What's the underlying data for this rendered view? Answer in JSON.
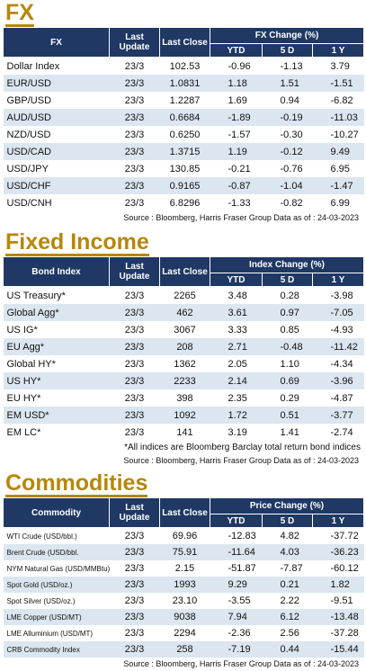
{
  "fx": {
    "title": "FX",
    "headers": {
      "name": "FX",
      "last_update": "Last Update",
      "last_close": "Last Close",
      "group": "FX Change (%)",
      "ytd": "YTD",
      "d5": "5 D",
      "y1": "1 Y"
    },
    "rows": [
      {
        "name": "Dollar Index",
        "update": "23/3",
        "close": "102.53",
        "ytd": "-0.96",
        "d5": "-1.13",
        "y1": "3.79"
      },
      {
        "name": "EUR/USD",
        "update": "23/3",
        "close": "1.0831",
        "ytd": "1.18",
        "d5": "1.51",
        "y1": "-1.51"
      },
      {
        "name": "GBP/USD",
        "update": "23/3",
        "close": "1.2287",
        "ytd": "1.69",
        "d5": "0.94",
        "y1": "-6.82"
      },
      {
        "name": "AUD/USD",
        "update": "23/3",
        "close": "0.6684",
        "ytd": "-1.89",
        "d5": "-0.19",
        "y1": "-11.03"
      },
      {
        "name": "NZD/USD",
        "update": "23/3",
        "close": "0.6250",
        "ytd": "-1.57",
        "d5": "-0.30",
        "y1": "-10.27"
      },
      {
        "name": "USD/CAD",
        "update": "23/3",
        "close": "1.3715",
        "ytd": "1.19",
        "d5": "-0.12",
        "y1": "9.49"
      },
      {
        "name": "USD/JPY",
        "update": "23/3",
        "close": "130.85",
        "ytd": "-0.21",
        "d5": "-0.76",
        "y1": "6.95"
      },
      {
        "name": "USD/CHF",
        "update": "23/3",
        "close": "0.9165",
        "ytd": "-0.87",
        "d5": "-1.04",
        "y1": "-1.47"
      },
      {
        "name": "USD/CNH",
        "update": "23/3",
        "close": "6.8296",
        "ytd": "-1.33",
        "d5": "-0.82",
        "y1": "6.99"
      }
    ],
    "source": "Source : Bloomberg, Harris Fraser Group Data as of : 24-03-2023"
  },
  "fixed_income": {
    "title": "Fixed Income",
    "headers": {
      "name": "Bond Index",
      "last_update": "Last Update",
      "last_close": "Last Close",
      "group": "Index Change (%)",
      "ytd": "YTD",
      "d5": "5 D",
      "y1": "1 Y"
    },
    "rows": [
      {
        "name": "US Treasury*",
        "update": "23/3",
        "close": "2265",
        "ytd": "3.48",
        "d5": "0.28",
        "y1": "-3.98"
      },
      {
        "name": "Global Agg*",
        "update": "23/3",
        "close": "462",
        "ytd": "3.61",
        "d5": "0.97",
        "y1": "-7.05"
      },
      {
        "name": "US IG*",
        "update": "23/3",
        "close": "3067",
        "ytd": "3.33",
        "d5": "0.85",
        "y1": "-4.93"
      },
      {
        "name": "EU Agg*",
        "update": "23/3",
        "close": "208",
        "ytd": "2.71",
        "d5": "-0.48",
        "y1": "-11.42"
      },
      {
        "name": "Global HY*",
        "update": "23/3",
        "close": "1362",
        "ytd": "2.05",
        "d5": "1.10",
        "y1": "-4.34"
      },
      {
        "name": "US HY*",
        "update": "23/3",
        "close": "2233",
        "ytd": "2.14",
        "d5": "0.69",
        "y1": "-3.96"
      },
      {
        "name": "EU HY*",
        "update": "23/3",
        "close": "398",
        "ytd": "2.35",
        "d5": "0.29",
        "y1": "-4.87"
      },
      {
        "name": "EM USD*",
        "update": "23/3",
        "close": "1092",
        "ytd": "1.72",
        "d5": "0.51",
        "y1": "-3.77"
      },
      {
        "name": "EM LC*",
        "update": "23/3",
        "close": "141",
        "ytd": "3.19",
        "d5": "1.41",
        "y1": "-2.74"
      }
    ],
    "note": "*All indices are Bloomberg Barclay total return bond indices",
    "source": "Source : Bloomberg, Harris Fraser Group Data as of : 24-03-2023"
  },
  "commodities": {
    "title": "Commodities",
    "headers": {
      "name": "Commodity",
      "last_update": "Last Update",
      "last_close": "Last Close",
      "group": "Price Change (%)",
      "ytd": "YTD",
      "d5": "5 D",
      "y1": "1 Y"
    },
    "rows": [
      {
        "name": "WTI Crude (USD/bbl.)",
        "update": "23/3",
        "close": "69.96",
        "ytd": "-12.83",
        "d5": "4.82",
        "y1": "-37.72"
      },
      {
        "name": "Brent Crude (USD/bbl.",
        "update": "23/3",
        "close": "75.91",
        "ytd": "-11.64",
        "d5": "4.03",
        "y1": "-36.23"
      },
      {
        "name": "NYM Natural Gas (USD/MMBtu)",
        "update": "23/3",
        "close": "2.15",
        "ytd": "-51.87",
        "d5": "-7.87",
        "y1": "-60.12"
      },
      {
        "name": "Spot Gold (USD/oz.)",
        "update": "23/3",
        "close": "1993",
        "ytd": "9.29",
        "d5": "0.21",
        "y1": "1.82"
      },
      {
        "name": "Spot Silver (USD/oz.)",
        "update": "23/3",
        "close": "23.10",
        "ytd": "-3.55",
        "d5": "2.22",
        "y1": "-9.51"
      },
      {
        "name": "LME Copper (USD/MT)",
        "update": "23/3",
        "close": "9038",
        "ytd": "7.94",
        "d5": "6.12",
        "y1": "-13.48"
      },
      {
        "name": "LME Alluminium (USD/MT)",
        "update": "23/3",
        "close": "2294",
        "ytd": "-2.36",
        "d5": "2.56",
        "y1": "-37.28"
      },
      {
        "name": "CRB Commodity Index",
        "update": "23/3",
        "close": "258",
        "ytd": "-7.19",
        "d5": "0.44",
        "y1": "-15.44"
      }
    ],
    "source": "Source : Bloomberg, Harris Fraser Group Data as of : 24-03-2023"
  }
}
